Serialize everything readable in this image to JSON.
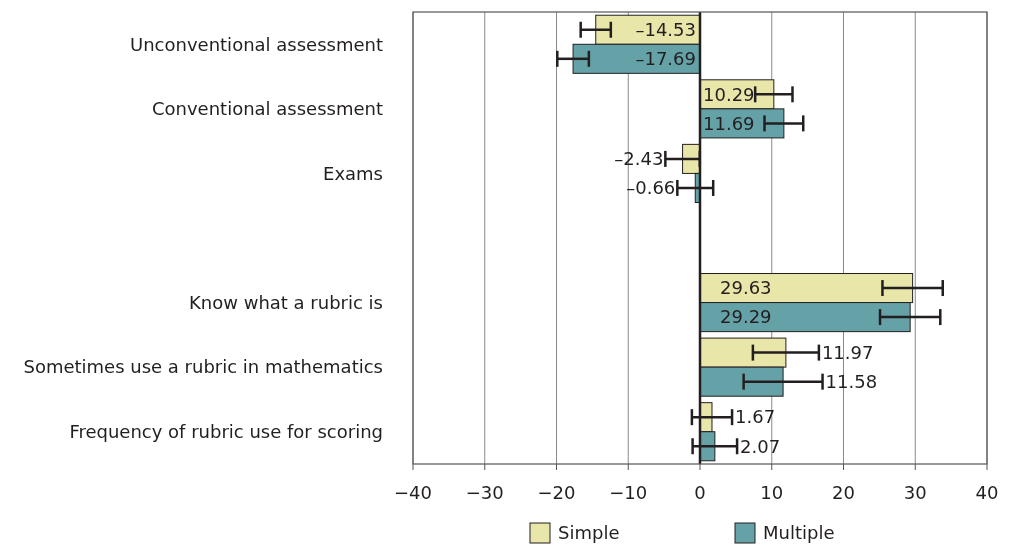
{
  "chart_data": {
    "type": "bar",
    "orientation": "horizontal",
    "categories": [
      "Unconventional assessment",
      "Conventional assessment",
      "Exams",
      null,
      "Know what a rubric is",
      "Sometimes use a rubric in mathematics",
      "Frequency of rubric use for scoring"
    ],
    "series": [
      {
        "name": "Simple",
        "color": "#e8e6a8",
        "values": [
          -14.53,
          10.29,
          -2.43,
          null,
          29.63,
          11.97,
          1.67
        ],
        "value_labels": [
          "–14.53",
          "10.29",
          "–2.43",
          null,
          "29.63",
          "11.97",
          "1.67"
        ],
        "errors": [
          2.1,
          2.6,
          2.4,
          null,
          4.2,
          4.6,
          2.8
        ]
      },
      {
        "name": "Multiple",
        "color": "#65a2a8",
        "values": [
          -17.69,
          11.69,
          -0.66,
          null,
          29.29,
          11.58,
          2.07
        ],
        "value_labels": [
          "–17.69",
          "11.69",
          "–0.66",
          null,
          "29.29",
          "11.58",
          "2.07"
        ],
        "errors": [
          2.2,
          2.7,
          2.5,
          null,
          4.2,
          5.5,
          3.1
        ]
      }
    ],
    "xlim": [
      -40,
      40
    ],
    "xticks": [
      -40,
      -30,
      -20,
      -10,
      0,
      10,
      20,
      30,
      40
    ],
    "grid": "x",
    "legend": "bottom"
  }
}
